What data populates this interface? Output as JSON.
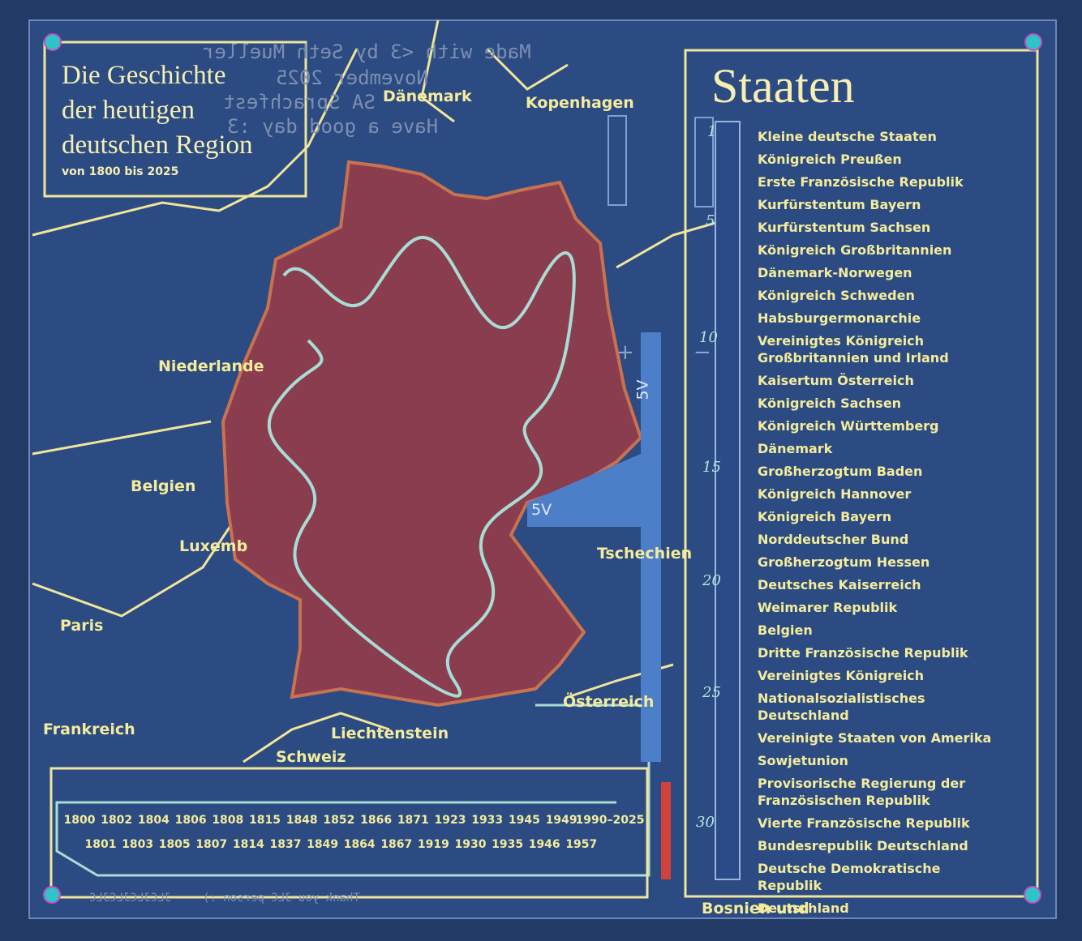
{
  "header": {
    "title_lines": [
      "Die Geschichte",
      "der heutigen",
      "deutschen Region"
    ],
    "subtitle": "von 1800 bis 2025"
  },
  "silkscreen_back": [
    "Made with <3 by Seth Mueller",
    "November 2025",
    "SA Sprachfest",
    "Have a good day :3"
  ],
  "silkscreen_bottom": [
    "JLCJLCJLCJLC",
    "Thank you JLC person :)"
  ],
  "map_labels": [
    "Dänemark",
    "Kopenhagen",
    "Niederlande",
    "Belgien",
    "Luxemb",
    "Paris",
    "Frankreich",
    "Liechtenstein",
    "Schweiz",
    "Österreich",
    "Tschechien",
    "Bosnien und"
  ],
  "power_labels": [
    "5V",
    "5V",
    "+",
    "−"
  ],
  "staaten": {
    "title": "Staaten",
    "markers": [
      "1",
      "5",
      "10",
      "15",
      "20",
      "25",
      "30"
    ],
    "items": [
      "Kleine deutsche Staaten",
      "Königreich Preußen",
      "Erste Französische Republik",
      "Kurfürstentum Bayern",
      "Kurfürstentum Sachsen",
      "Königreich Großbritannien",
      "Dänemark-Norwegen",
      "Königreich Schweden",
      "Habsburgermonarchie",
      "Vereinigtes Königreich Großbritannien und Irland",
      "Kaisertum Österreich",
      "Königreich Sachsen",
      "Königreich Württemberg",
      "Dänemark",
      "Großherzogtum Baden",
      "Königreich Hannover",
      "Königreich Bayern",
      "Norddeutscher Bund",
      "Großherzogtum Hessen",
      "Deutsches Kaiserreich",
      "Weimarer Republik",
      "Belgien",
      "Dritte Französische Republik",
      "Vereinigtes Königreich",
      "Nationalsozialistisches Deutschland",
      "Vereinigte Staaten von Amerika",
      "Sowjetunion",
      "Provisorische Regierung der Französischen Republik",
      "Vierte Französische Republik",
      "Bundesrepublik Deutschland",
      "Deutsche Demokratische Republik",
      "Deutschland"
    ]
  },
  "years": {
    "top": [
      "1800",
      "1802",
      "1804",
      "1806",
      "1808",
      "1815",
      "1848",
      "1852",
      "1866",
      "1871",
      "1923",
      "1933",
      "1945",
      "1949",
      "1990–2025"
    ],
    "bottom": [
      "1801",
      "1803",
      "1805",
      "1807",
      "1814",
      "1837",
      "1849",
      "1864",
      "1867",
      "1919",
      "1930",
      "1935",
      "1946",
      "1957"
    ]
  }
}
